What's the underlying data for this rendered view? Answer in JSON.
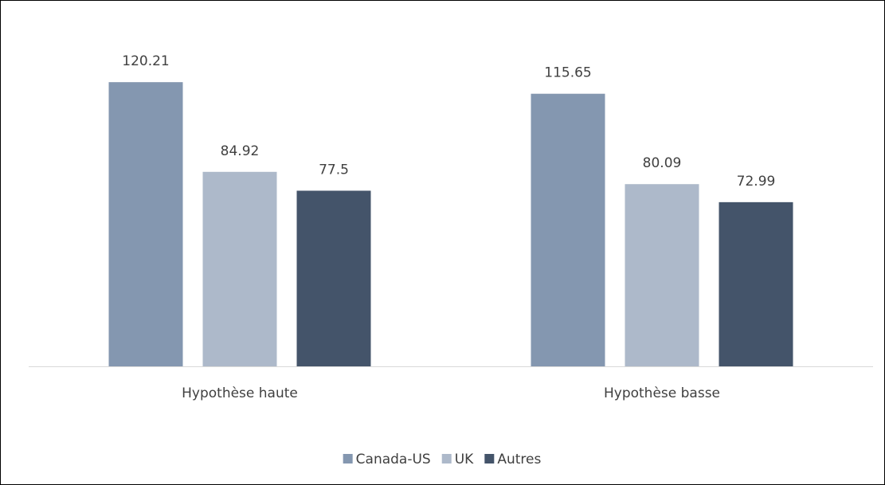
{
  "chart_data": {
    "type": "bar",
    "categories": [
      "Hypothèse haute",
      "Hypothèse basse"
    ],
    "series": [
      {
        "name": "Canada-US",
        "color": "#8497b0",
        "values": [
          120.21,
          115.65
        ]
      },
      {
        "name": "UK",
        "color": "#adb9ca",
        "values": [
          84.92,
          80.09
        ]
      },
      {
        "name": "Autres",
        "color": "#44546a",
        "values": [
          77.5,
          72.99
        ]
      }
    ],
    "ylim": [
      8.4,
      140
    ],
    "legend": "bottom"
  }
}
